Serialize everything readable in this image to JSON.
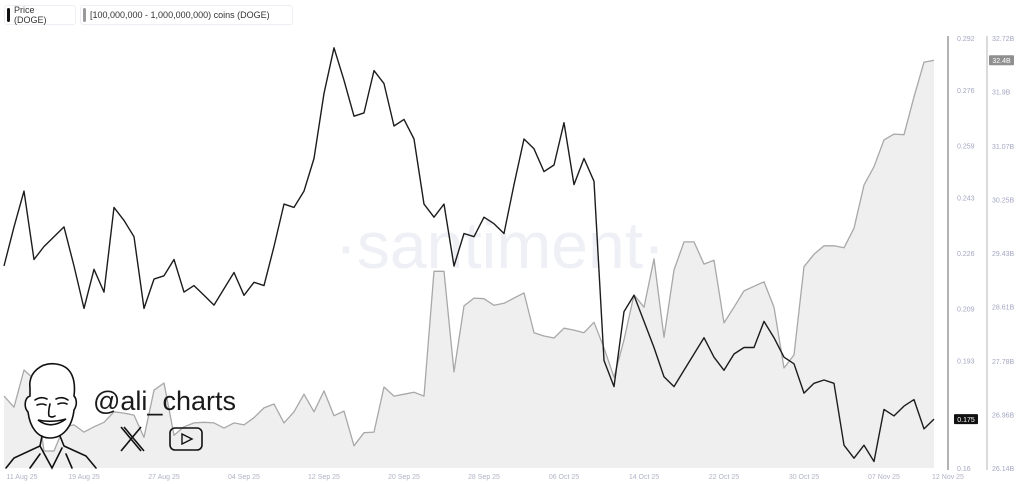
{
  "legend": {
    "price_label": "Price (DOGE)",
    "holdings_label": "[100,000,000 - 1,000,000,000) coins (DOGE)"
  },
  "watermark": "·santiment·",
  "branding": {
    "handle": "@ali_charts",
    "icons": [
      "avatar-illustration",
      "x-logo-icon",
      "youtube-icon"
    ]
  },
  "colors": {
    "price_line": "#1c1c1c",
    "holdings_line": "#a8a8a8",
    "holdings_fill": "#efefef",
    "price_badge": "#111111",
    "holdings_badge": "#8f8f8f",
    "tick_text": "#a3a6c2"
  },
  "chart_data": {
    "type": "line",
    "x_tick_labels": [
      "11 Aug 25",
      "19 Aug 25",
      "27 Aug 25",
      "04 Sep 25",
      "12 Sep 25",
      "20 Sep 25",
      "28 Sep 25",
      "06 Oct 25",
      "14 Oct 25",
      "22 Oct 25",
      "30 Oct 25",
      "07 Nov 25",
      "12 Nov 25"
    ],
    "x": [
      "2025-08-11",
      "2025-08-12",
      "2025-08-13",
      "2025-08-14",
      "2025-08-15",
      "2025-08-16",
      "2025-08-17",
      "2025-08-18",
      "2025-08-19",
      "2025-08-20",
      "2025-08-21",
      "2025-08-22",
      "2025-08-23",
      "2025-08-24",
      "2025-08-25",
      "2025-08-26",
      "2025-08-27",
      "2025-08-28",
      "2025-08-29",
      "2025-08-30",
      "2025-08-31",
      "2025-09-01",
      "2025-09-02",
      "2025-09-03",
      "2025-09-04",
      "2025-09-05",
      "2025-09-06",
      "2025-09-07",
      "2025-09-08",
      "2025-09-09",
      "2025-09-10",
      "2025-09-11",
      "2025-09-12",
      "2025-09-13",
      "2025-09-14",
      "2025-09-15",
      "2025-09-16",
      "2025-09-17",
      "2025-09-18",
      "2025-09-19",
      "2025-09-20",
      "2025-09-21",
      "2025-09-22",
      "2025-09-23",
      "2025-09-24",
      "2025-09-25",
      "2025-09-26",
      "2025-09-27",
      "2025-09-28",
      "2025-09-29",
      "2025-09-30",
      "2025-10-01",
      "2025-10-02",
      "2025-10-03",
      "2025-10-04",
      "2025-10-05",
      "2025-10-06",
      "2025-10-07",
      "2025-10-08",
      "2025-10-09",
      "2025-10-10",
      "2025-10-11",
      "2025-10-12",
      "2025-10-13",
      "2025-10-14",
      "2025-10-15",
      "2025-10-16",
      "2025-10-17",
      "2025-10-18",
      "2025-10-19",
      "2025-10-20",
      "2025-10-21",
      "2025-10-22",
      "2025-10-23",
      "2025-10-24",
      "2025-10-25",
      "2025-10-26",
      "2025-10-27",
      "2025-10-28",
      "2025-10-29",
      "2025-10-30",
      "2025-10-31",
      "2025-11-01",
      "2025-11-02",
      "2025-11-03",
      "2025-11-04",
      "2025-11-05",
      "2025-11-06",
      "2025-11-07",
      "2025-11-08",
      "2025-11-09",
      "2025-11-10",
      "2025-11-11",
      "2025-11-12"
    ],
    "series": [
      {
        "name": "Price (DOGE)",
        "axis": "left-inner",
        "values": [
          0.222,
          0.234,
          0.245,
          0.224,
          0.228,
          0.231,
          0.234,
          0.222,
          0.209,
          0.221,
          0.214,
          0.24,
          0.236,
          0.231,
          0.209,
          0.218,
          0.219,
          0.224,
          0.214,
          0.216,
          0.213,
          0.21,
          0.215,
          0.22,
          0.213,
          0.217,
          0.216,
          0.228,
          0.241,
          0.24,
          0.245,
          0.255,
          0.275,
          0.289,
          0.279,
          0.268,
          0.269,
          0.282,
          0.278,
          0.265,
          0.267,
          0.261,
          0.241,
          0.237,
          0.241,
          0.222,
          0.232,
          0.231,
          0.237,
          0.235,
          0.232,
          0.247,
          0.261,
          0.258,
          0.251,
          0.253,
          0.266,
          0.247,
          0.255,
          0.248,
          0.193,
          0.185,
          0.208,
          0.213,
          0.205,
          0.197,
          0.188,
          0.185,
          0.19,
          0.195,
          0.2,
          0.194,
          0.19,
          0.195,
          0.197,
          0.197,
          0.205,
          0.2,
          0.194,
          0.192,
          0.183,
          0.186,
          0.187,
          0.186,
          0.167,
          0.163,
          0.167,
          0.162,
          0.178,
          0.176,
          0.179,
          0.181,
          0.172,
          0.175
        ]
      },
      {
        "name": "[100,000,000 - 1,000,000,000) coins (DOGE)",
        "axis": "right",
        "unit": "B",
        "values": [
          27.24,
          27.07,
          27.64,
          27.5,
          26.4,
          26.4,
          26.77,
          26.8,
          26.69,
          26.77,
          26.84,
          27.0,
          26.98,
          26.95,
          26.61,
          27.33,
          27.44,
          26.64,
          26.77,
          26.83,
          26.84,
          26.83,
          26.75,
          26.83,
          26.8,
          26.91,
          27.06,
          27.12,
          26.83,
          27.0,
          27.27,
          27.0,
          27.32,
          26.94,
          27.01,
          26.48,
          26.68,
          26.69,
          27.38,
          27.24,
          27.27,
          27.3,
          27.24,
          29.15,
          29.15,
          27.61,
          28.62,
          28.74,
          28.73,
          28.63,
          28.66,
          28.74,
          28.82,
          28.21,
          28.16,
          28.13,
          28.28,
          28.25,
          28.21,
          28.37,
          27.98,
          27.53,
          28.1,
          28.79,
          28.6,
          29.34,
          28.14,
          29.17,
          29.6,
          29.6,
          29.26,
          29.32,
          28.36,
          28.6,
          28.85,
          28.92,
          28.99,
          28.6,
          27.67,
          27.87,
          29.22,
          29.41,
          29.54,
          29.54,
          29.51,
          29.81,
          30.47,
          30.75,
          31.16,
          31.25,
          31.24,
          31.82,
          32.35,
          32.38
        ]
      }
    ],
    "price_axis": {
      "range": [
        0.16,
        0.292
      ],
      "tick_labels": [
        "0.292",
        "0.276",
        "0.259",
        "0.243",
        "0.226",
        "0.209",
        "0.193",
        "0.16"
      ]
    },
    "holdings_axis": {
      "range": [
        26.14,
        32.72
      ],
      "tick_labels": [
        "32.72B",
        "31.9B",
        "31.07B",
        "30.25B",
        "29.43B",
        "28.61B",
        "27.78B",
        "26.96B",
        "26.14B"
      ]
    },
    "last_value_labels": {
      "price": "0.175",
      "holdings": "32.4B"
    },
    "grid": false,
    "legend_placement": "top-left"
  }
}
